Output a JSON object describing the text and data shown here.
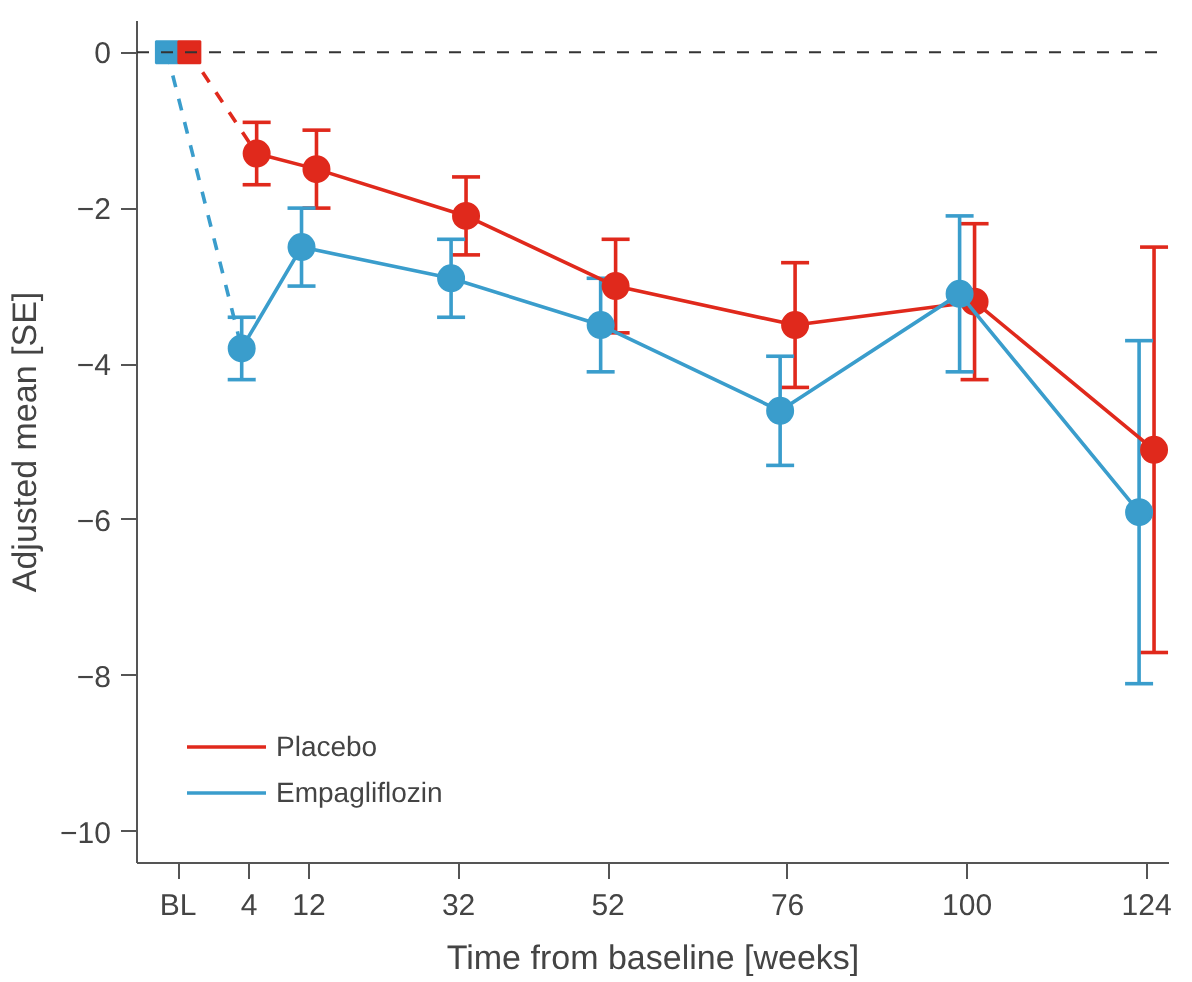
{
  "chart_data": {
    "type": "line",
    "xlabel": "Time from baseline [weeks]",
    "ylabel": "Adjusted mean [SE]",
    "xlim": [
      -11,
      127
    ],
    "ylim": [
      -10.4,
      0.4
    ],
    "xticks": [
      {
        "value": -5.5,
        "label": "BL"
      },
      4,
      12,
      32,
      52,
      76,
      100,
      124
    ],
    "yticks": [
      {
        "value": 0,
        "label": "0"
      },
      {
        "value": -2,
        "label": "−2"
      },
      {
        "value": -4,
        "label": "−4"
      },
      {
        "value": -6,
        "label": "−6"
      },
      {
        "value": -8,
        "label": "−8"
      },
      {
        "value": -10,
        "label": "−10"
      }
    ],
    "grid": false,
    "legend": "bottom left",
    "marker": "circle",
    "line_style": "solid",
    "ref_lines": [
      {
        "axis": "y",
        "value": 0,
        "color": "#333333",
        "line_style": "dashed"
      }
    ],
    "series": [
      {
        "name": "Placebo",
        "color": "#e0291c",
        "x": [
          -4,
          5,
          13,
          33,
          53,
          77,
          101,
          125
        ],
        "values": [
          0,
          -1.3,
          -1.5,
          -2.1,
          -3.0,
          -3.5,
          -3.2,
          -5.1
        ],
        "errors": [
          null,
          [
            -1.7,
            -0.9
          ],
          [
            -2.0,
            -1.0
          ],
          [
            -2.6,
            -1.6
          ],
          [
            -3.6,
            -2.4
          ],
          [
            -4.3,
            -2.7
          ],
          [
            -4.2,
            -2.2
          ],
          [
            -7.7,
            -2.5
          ]
        ]
      },
      {
        "name": "Empagliflozin",
        "color": "#3a9dcc",
        "x": [
          -7,
          3,
          11,
          31,
          51,
          75,
          99,
          123
        ],
        "values": [
          0,
          -3.8,
          -2.5,
          -2.9,
          -3.5,
          -4.6,
          -3.1,
          -5.9
        ],
        "errors": [
          null,
          [
            -4.2,
            -3.4
          ],
          [
            -3.0,
            -2.0
          ],
          [
            -3.4,
            -2.4
          ],
          [
            -4.1,
            -2.9
          ],
          [
            -5.3,
            -3.9
          ],
          [
            -4.1,
            -2.1
          ],
          [
            -8.1,
            -3.7
          ]
        ]
      },
      {
        "type": "scatter",
        "marker": "square",
        "color": "#3a9dcc",
        "x": [
          -7
        ],
        "values": [
          0
        ]
      },
      {
        "type": "scatter",
        "marker": "square",
        "color": "#e0291c",
        "x": [
          -4
        ],
        "values": [
          0
        ]
      }
    ]
  }
}
